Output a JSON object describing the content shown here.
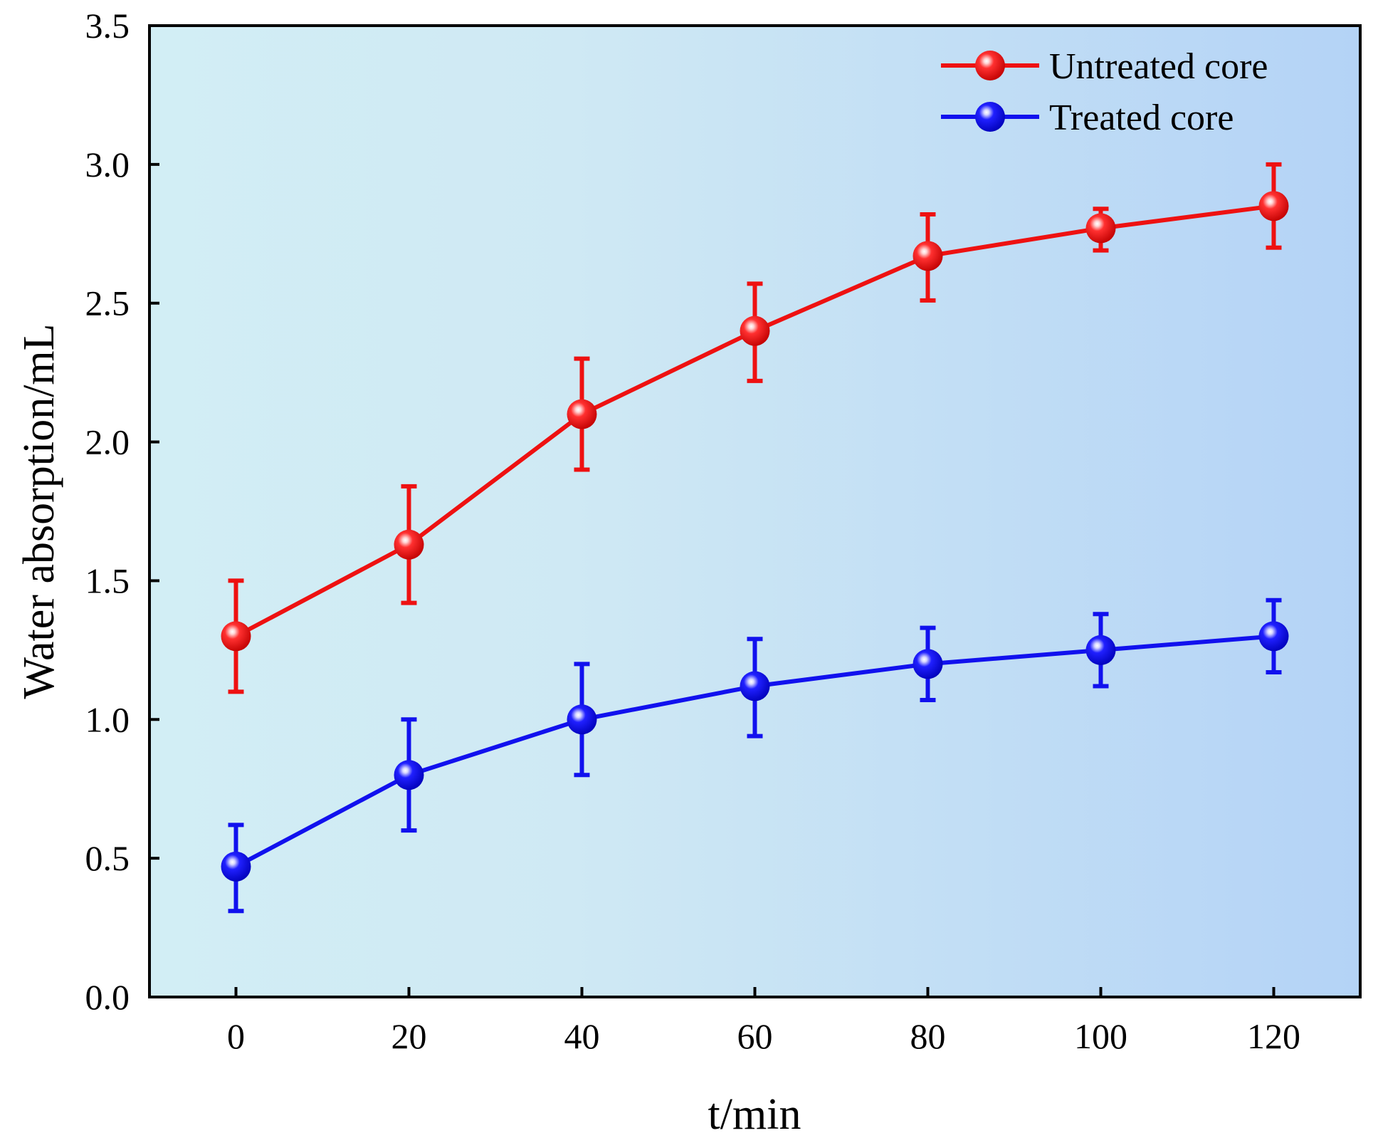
{
  "chart_data": {
    "type": "line",
    "title": "",
    "xlabel": "t/min",
    "ylabel": "Water absorption/mL",
    "xlim": [
      -10,
      130
    ],
    "ylim": [
      0,
      3.5
    ],
    "x": [
      0,
      20,
      40,
      60,
      80,
      100,
      120
    ],
    "xticks": [
      "0",
      "20",
      "40",
      "60",
      "80",
      "100",
      "120"
    ],
    "yticks": [
      "0.0",
      "0.5",
      "1.0",
      "1.5",
      "2.0",
      "2.5",
      "3.0",
      "3.5"
    ],
    "ytick_values": [
      0,
      0.5,
      1.0,
      1.5,
      2.0,
      2.5,
      3.0,
      3.5
    ],
    "legend_position": "top-right",
    "grid": false,
    "series": [
      {
        "name": "Untreated core",
        "color": "#ee1111",
        "values": [
          1.3,
          1.63,
          2.1,
          2.4,
          2.67,
          2.77,
          2.85
        ],
        "err_low": [
          1.1,
          1.42,
          1.9,
          2.22,
          2.51,
          2.69,
          2.7
        ],
        "err_high": [
          1.5,
          1.84,
          2.3,
          2.57,
          2.82,
          2.84,
          3.0
        ]
      },
      {
        "name": "Treated core",
        "color": "#1111ee",
        "values": [
          0.47,
          0.8,
          1.0,
          1.12,
          1.2,
          1.25,
          1.3
        ],
        "err_low": [
          0.31,
          0.6,
          0.8,
          0.94,
          1.07,
          1.12,
          1.17
        ],
        "err_high": [
          0.62,
          1.0,
          1.2,
          1.29,
          1.33,
          1.38,
          1.43
        ]
      }
    ]
  }
}
